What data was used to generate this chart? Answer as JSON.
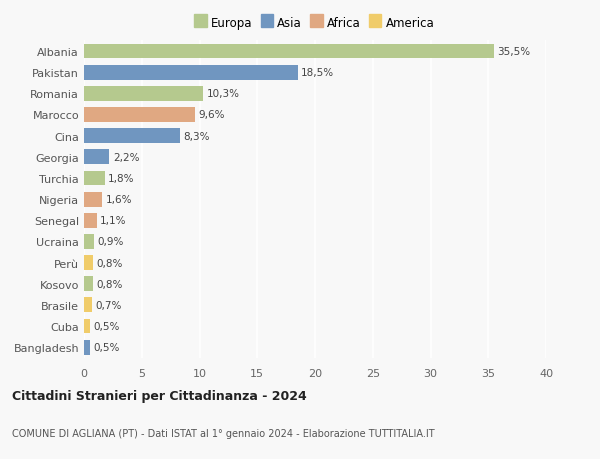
{
  "countries": [
    "Albania",
    "Pakistan",
    "Romania",
    "Marocco",
    "Cina",
    "Georgia",
    "Turchia",
    "Nigeria",
    "Senegal",
    "Ucraina",
    "Perù",
    "Kosovo",
    "Brasile",
    "Cuba",
    "Bangladesh"
  ],
  "values": [
    35.5,
    18.5,
    10.3,
    9.6,
    8.3,
    2.2,
    1.8,
    1.6,
    1.1,
    0.9,
    0.8,
    0.8,
    0.7,
    0.5,
    0.5
  ],
  "labels": [
    "35,5%",
    "18,5%",
    "10,3%",
    "9,6%",
    "8,3%",
    "2,2%",
    "1,8%",
    "1,6%",
    "1,1%",
    "0,9%",
    "0,8%",
    "0,8%",
    "0,7%",
    "0,5%",
    "0,5%"
  ],
  "continents": [
    "Europa",
    "Asia",
    "Europa",
    "Africa",
    "Asia",
    "Asia",
    "Europa",
    "Africa",
    "Africa",
    "Europa",
    "America",
    "Europa",
    "America",
    "America",
    "Asia"
  ],
  "colors": {
    "Europa": "#b5c98e",
    "Asia": "#7096c0",
    "Africa": "#e0a882",
    "America": "#f0cc6a"
  },
  "legend_order": [
    "Europa",
    "Asia",
    "Africa",
    "America"
  ],
  "title": "Cittadini Stranieri per Cittadinanza - 2024",
  "subtitle": "COMUNE DI AGLIANA (PT) - Dati ISTAT al 1° gennaio 2024 - Elaborazione TUTTITALIA.IT",
  "xlim": [
    0,
    40
  ],
  "xticks": [
    0,
    5,
    10,
    15,
    20,
    25,
    30,
    35,
    40
  ],
  "bg_color": "#f8f8f8",
  "grid_color": "#ffffff",
  "bar_height": 0.7
}
